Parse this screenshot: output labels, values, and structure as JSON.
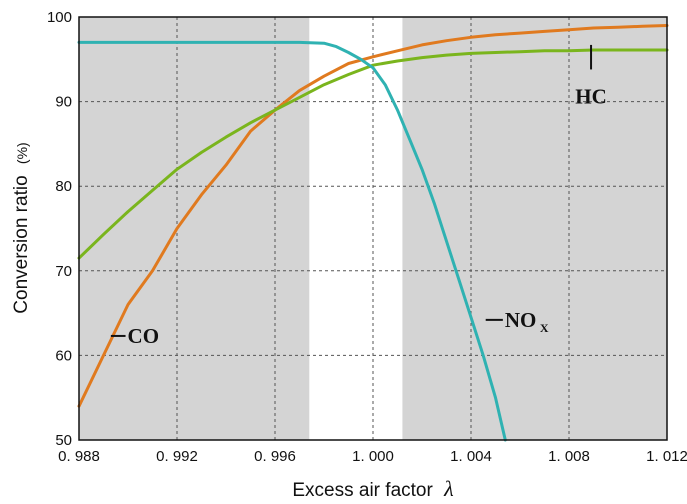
{
  "chart_data": {
    "type": "line",
    "xlabel": "Excess air factor",
    "xlabel_symbol": "λ",
    "ylabel": "Conversion ratio",
    "ylabel_unit": "(%)",
    "xlim": [
      0.988,
      1.012
    ],
    "ylim": [
      50,
      100
    ],
    "x_ticks": [
      0.988,
      0.992,
      0.996,
      1.0,
      1.004,
      1.008,
      1.012
    ],
    "x_tick_labels": [
      "0. 988",
      "0. 992",
      "0. 996",
      "1. 000",
      "1. 004",
      "1. 008",
      "1. 012"
    ],
    "y_ticks": [
      50,
      60,
      70,
      80,
      90,
      100
    ],
    "y_tick_labels": [
      "50",
      "60",
      "70",
      "80",
      "90",
      "100"
    ],
    "grid": true,
    "window_band": [
      0.9974,
      1.0012
    ],
    "colors": {
      "background": "#d4d4d4",
      "window": "#ffffff",
      "grid": "#555555",
      "CO": "#e07a1f",
      "HC": "#7ab51d",
      "NOx": "#2fb2b2"
    },
    "series": [
      {
        "name": "CO",
        "label_main": "CO",
        "label_sub": "",
        "color": "#e07a1f",
        "x": [
          0.988,
          0.989,
          0.99,
          0.991,
          0.992,
          0.993,
          0.994,
          0.995,
          0.996,
          0.997,
          0.998,
          0.999,
          1.0,
          1.001,
          1.002,
          1.003,
          1.004,
          1.005,
          1.006,
          1.007,
          1.008,
          1.009,
          1.01,
          1.011,
          1.012
        ],
        "y": [
          54.0,
          60.0,
          66.0,
          70.0,
          75.0,
          79.0,
          82.5,
          86.5,
          89.0,
          91.3,
          93.0,
          94.5,
          95.3,
          96.0,
          96.7,
          97.2,
          97.6,
          97.9,
          98.1,
          98.3,
          98.5,
          98.7,
          98.8,
          98.9,
          99.0
        ]
      },
      {
        "name": "HC",
        "label_main": "HC",
        "label_sub": "",
        "color": "#7ab51d",
        "x": [
          0.988,
          0.989,
          0.99,
          0.991,
          0.992,
          0.993,
          0.994,
          0.995,
          0.996,
          0.997,
          0.998,
          0.999,
          1.0,
          1.001,
          1.002,
          1.003,
          1.004,
          1.005,
          1.006,
          1.007,
          1.008,
          1.009,
          1.01,
          1.011,
          1.012
        ],
        "y": [
          71.5,
          74.3,
          77.0,
          79.5,
          82.0,
          84.0,
          85.8,
          87.5,
          89.0,
          90.5,
          92.0,
          93.2,
          94.3,
          94.8,
          95.2,
          95.5,
          95.7,
          95.8,
          95.9,
          96.0,
          96.0,
          96.1,
          96.1,
          96.1,
          96.1
        ]
      },
      {
        "name": "NOx",
        "label_main": "NO",
        "label_sub": "X",
        "color": "#2fb2b2",
        "x": [
          0.988,
          0.99,
          0.992,
          0.994,
          0.996,
          0.997,
          0.998,
          0.9985,
          0.999,
          0.9995,
          1.0,
          1.0005,
          1.001,
          1.0015,
          1.002,
          1.0025,
          1.003,
          1.0035,
          1.004,
          1.0045,
          1.005,
          1.0054
        ],
        "y": [
          97.0,
          97.0,
          97.0,
          97.0,
          97.0,
          97.0,
          96.9,
          96.5,
          95.8,
          95.0,
          94.0,
          92.0,
          89.0,
          85.5,
          82.0,
          78.0,
          73.5,
          69.0,
          64.5,
          60.0,
          55.0,
          50.0
        ]
      }
    ]
  }
}
